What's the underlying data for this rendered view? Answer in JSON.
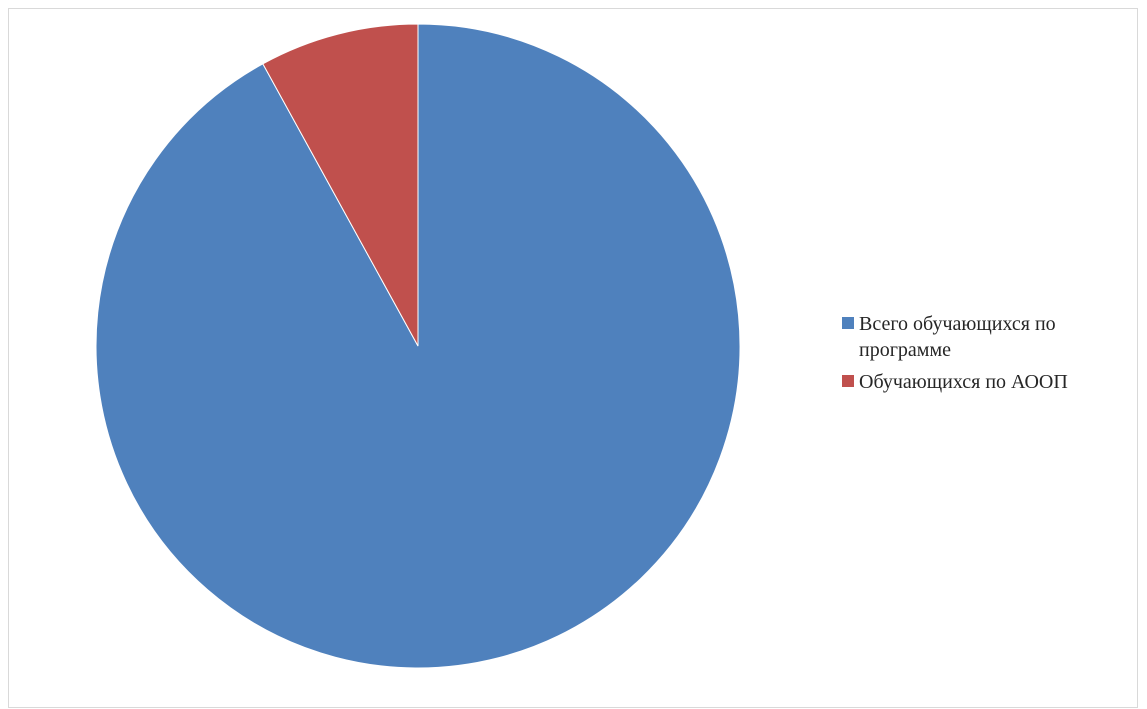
{
  "chart_data": {
    "type": "pie",
    "title": "",
    "series": [
      {
        "values": [
          92,
          8
        ]
      }
    ],
    "categories": [
      "Всего обучающихся по программе",
      "Обучающихся по АООП"
    ],
    "colors": [
      "#4f81bd",
      "#c0504d"
    ],
    "start_angle_deg": 0,
    "direction": "clockwise",
    "legend": {
      "position": "right",
      "items": [
        {
          "label": "Всего обучающихся по программе",
          "color": "#4f81bd"
        },
        {
          "label": "Обучающихся по АООП",
          "color": "#c0504d"
        }
      ]
    }
  }
}
